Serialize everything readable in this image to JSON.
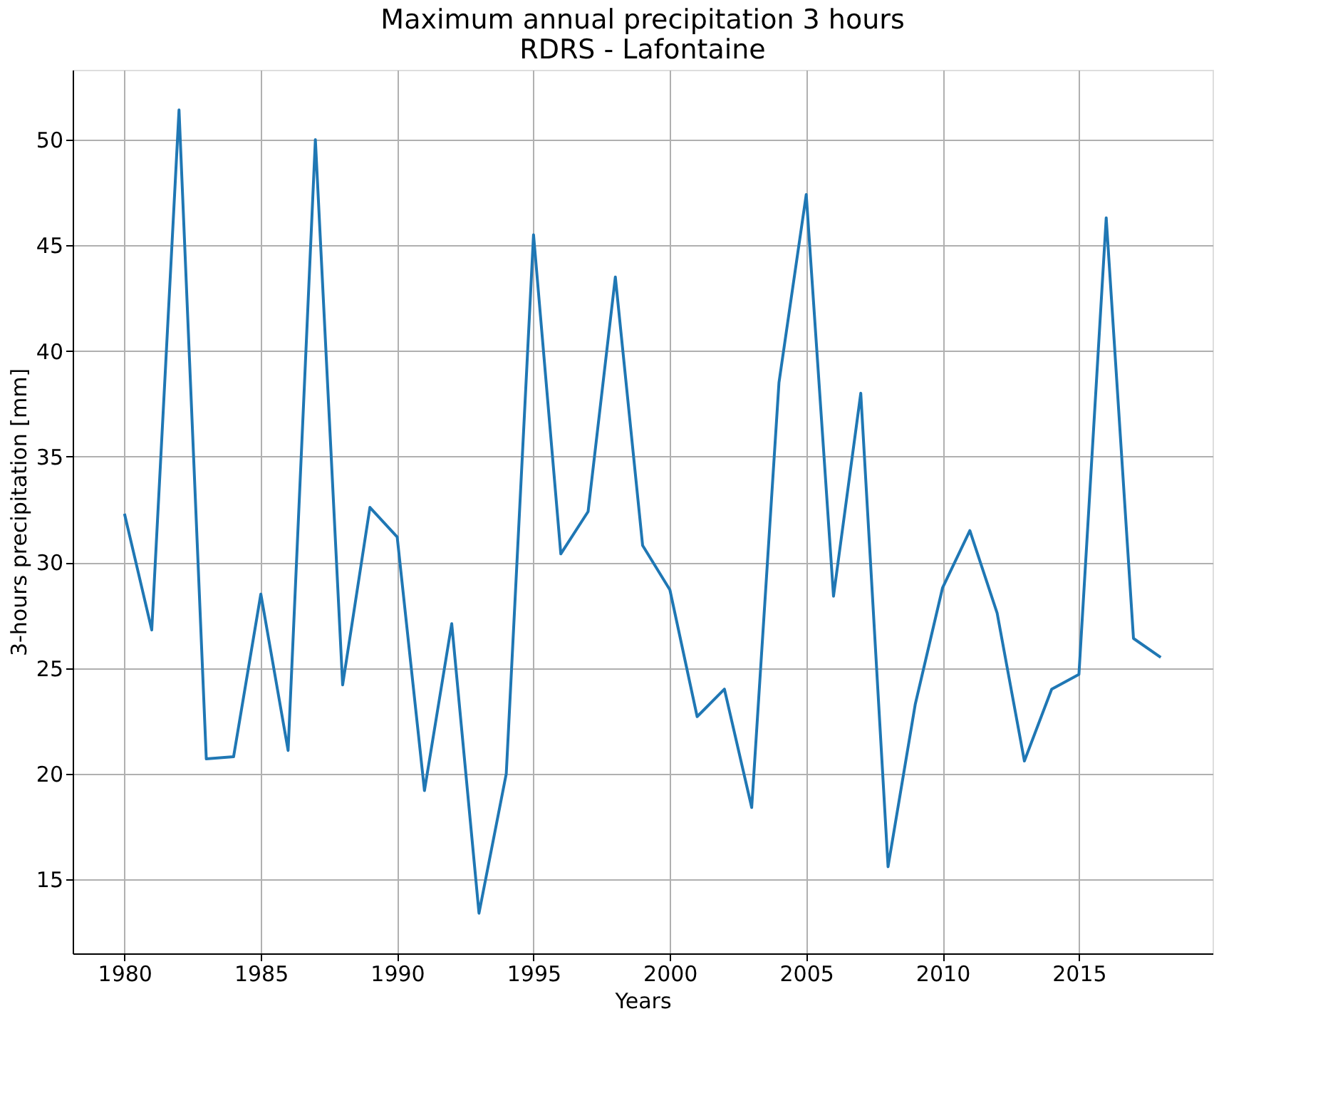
{
  "chart_data": {
    "type": "line",
    "title": "Maximum annual precipitation 3 hours",
    "subtitle": "RDRS - Lafontaine",
    "xlabel": "Years",
    "ylabel": "3-hours precipitation [mm]",
    "x": [
      1980,
      1981,
      1982,
      1983,
      1984,
      1985,
      1986,
      1987,
      1988,
      1989,
      1990,
      1991,
      1992,
      1993,
      1994,
      1995,
      1996,
      1997,
      1998,
      1999,
      2000,
      2001,
      2002,
      2003,
      2004,
      2005,
      2006,
      2007,
      2008,
      2009,
      2010,
      2011,
      2012,
      2013,
      2014,
      2015,
      2016,
      2017,
      2018
    ],
    "series": [
      {
        "color": "#1f77b4",
        "values": [
          32.3,
          26.8,
          51.4,
          20.7,
          20.8,
          28.5,
          21.1,
          50.0,
          24.2,
          32.6,
          31.2,
          19.2,
          27.1,
          13.4,
          20.0,
          45.5,
          30.4,
          32.4,
          43.5,
          30.8,
          28.7,
          22.7,
          24.0,
          18.4,
          38.5,
          47.4,
          28.4,
          38.0,
          15.6,
          23.3,
          28.8,
          31.5,
          27.6,
          20.6,
          24.0,
          24.7,
          46.3,
          26.4,
          25.5
        ]
      }
    ],
    "xlim": [
      1978.1,
      2019.9
    ],
    "ylim": [
      11.5,
      53.3
    ],
    "xticks": [
      1980,
      1985,
      1990,
      1995,
      2000,
      2005,
      2010,
      2015
    ],
    "yticks": [
      15,
      20,
      25,
      30,
      35,
      40,
      45,
      50
    ],
    "grid": true
  }
}
